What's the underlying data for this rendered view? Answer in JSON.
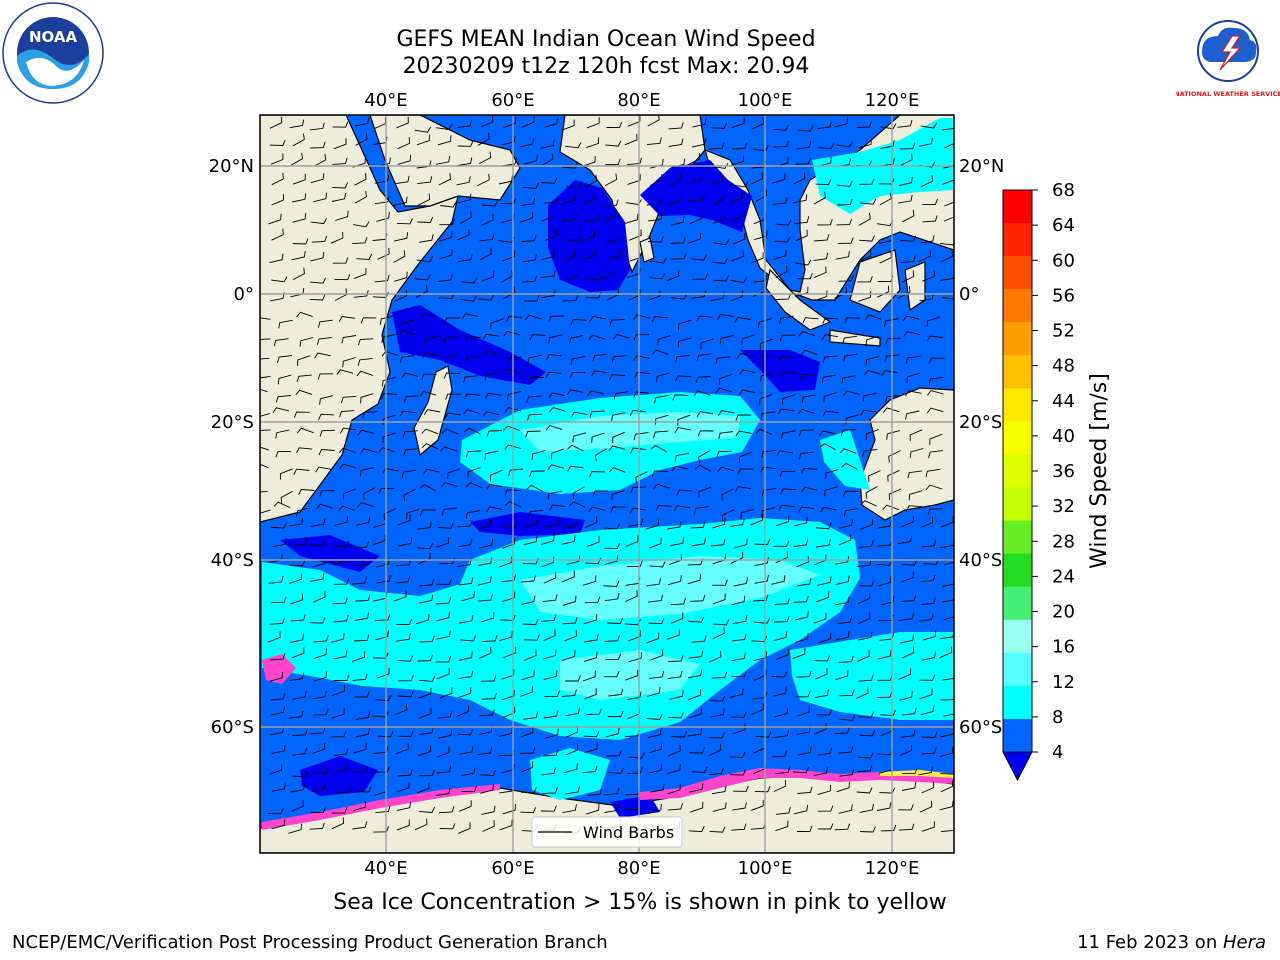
{
  "title": {
    "line1": "GEFS MEAN Indian Ocean Wind Speed",
    "line2": "20230209 t12z 120h fcst   Max: 20.94"
  },
  "logos": {
    "left": {
      "icon": "noaa-logo",
      "text": "NOAA"
    },
    "right": {
      "icon": "nws-logo",
      "text": "NATIONAL WEATHER SERVICE"
    }
  },
  "map": {
    "projection": "equirectangular",
    "lon_range": [
      20,
      130
    ],
    "lat_range": [
      -75,
      27
    ],
    "lon_ticks": [
      "40°E",
      "60°E",
      "80°E",
      "100°E",
      "120°E"
    ],
    "lat_ticks_left": [
      "20°N",
      "0°",
      "20°S",
      "40°S",
      "60°S"
    ],
    "lat_ticks_right": [
      "20°N",
      "0°",
      "20°S",
      "40°S",
      "60°S"
    ],
    "grid": true,
    "colors": {
      "land": "#eeeddc",
      "ocean_low": "#0066ff",
      "ocean_lowest": "#0000ee",
      "ocean_mid": "#00ffff",
      "ocean_high": "#66ffff",
      "sea_ice": "#ff44cc",
      "coast": "#000000"
    }
  },
  "legend": {
    "label": "Wind Barbs",
    "placement": "bottom-center"
  },
  "colorbar": {
    "label": "Wind Speed [m/s]",
    "ticks": [
      "68",
      "64",
      "60",
      "56",
      "52",
      "48",
      "44",
      "40",
      "36",
      "32",
      "28",
      "24",
      "20",
      "16",
      "12",
      "8",
      "4"
    ],
    "colors": [
      "#ff0000",
      "#ff2400",
      "#ff5000",
      "#ff7800",
      "#ff9e00",
      "#ffc000",
      "#ffe800",
      "#f4ff00",
      "#ddff00",
      "#c2ff00",
      "#66ee22",
      "#22dd22",
      "#44ee77",
      "#99ffee",
      "#55ffff",
      "#00ffff",
      "#0066ff"
    ],
    "under_color": "#0000ee"
  },
  "footer": {
    "ice_note": "Sea Ice Concentration > 15% is shown in pink to yellow",
    "credit": "NCEP/EMC/Verification Post Processing Product Generation Branch",
    "date": "11 Feb 2023 on ",
    "host": "Hera"
  }
}
